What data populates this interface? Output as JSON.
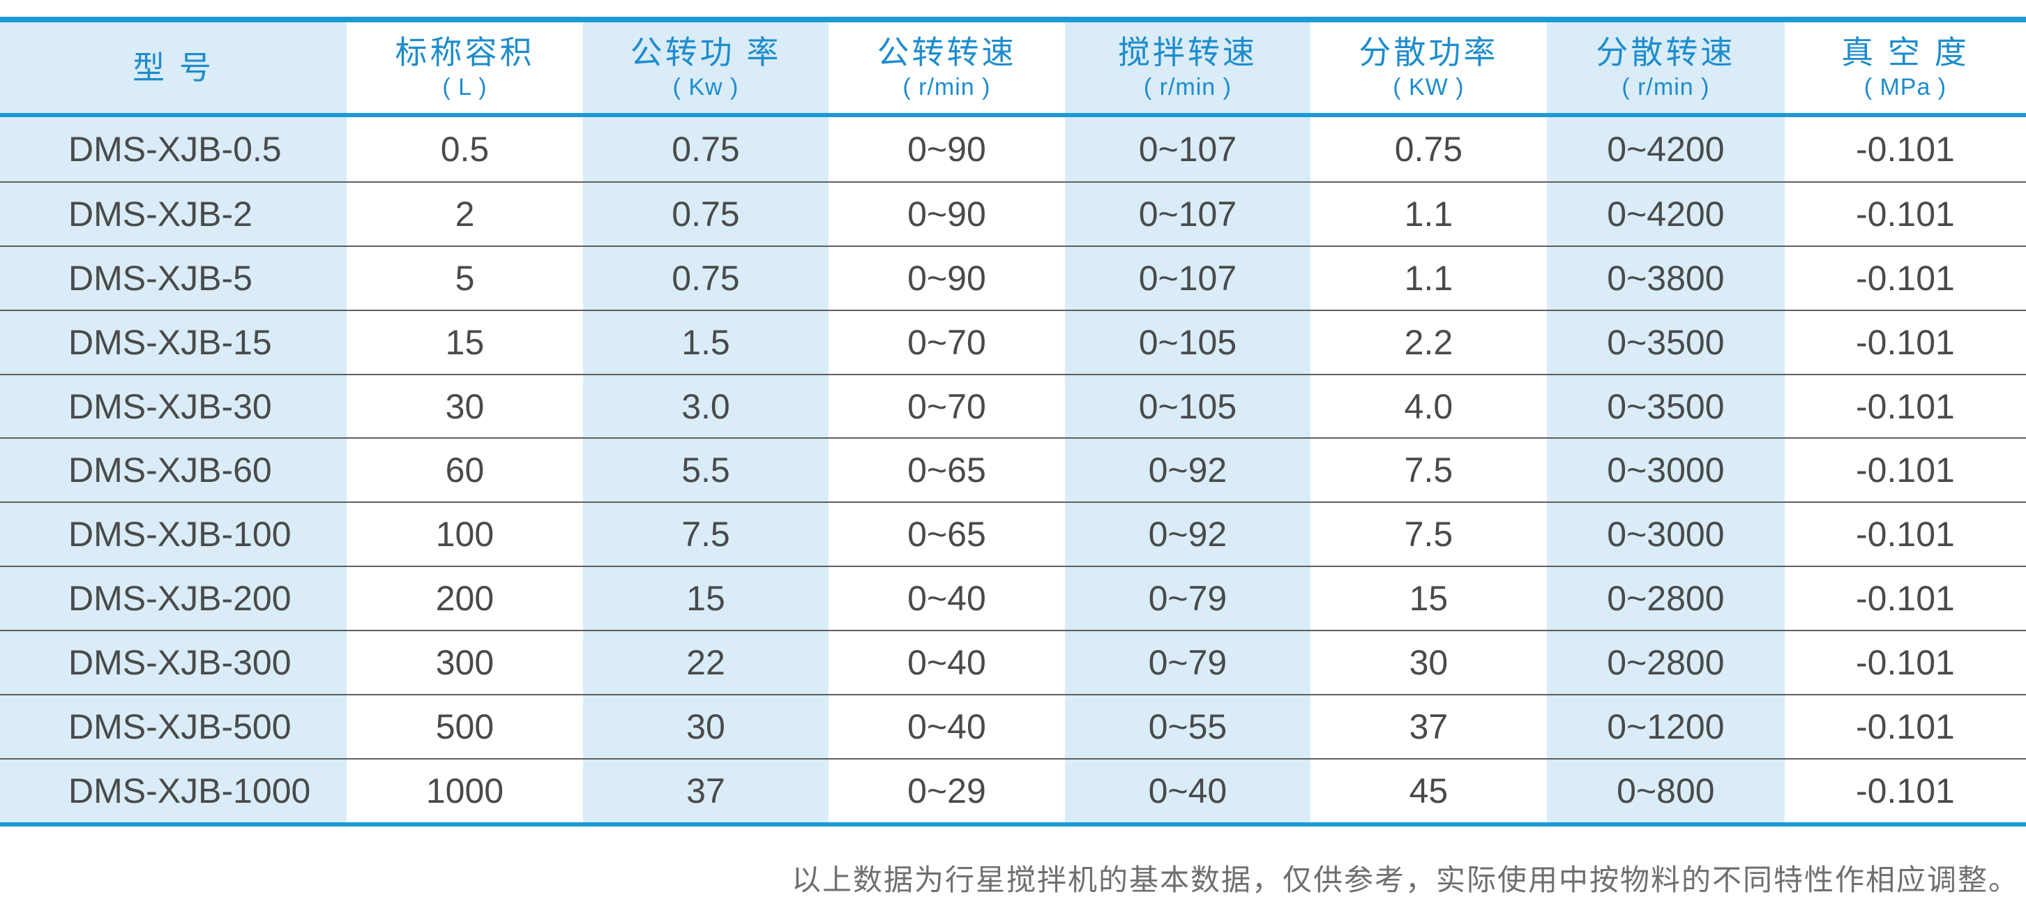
{
  "table": {
    "columns": [
      {
        "title": "型  号",
        "unit": ""
      },
      {
        "title": "标称容积",
        "unit": "( L )"
      },
      {
        "title": "公转功 率",
        "unit": "( Kw )"
      },
      {
        "title": "公转转速",
        "unit": "( r/min )"
      },
      {
        "title": "搅拌转速",
        "unit": "( r/min )"
      },
      {
        "title": "分散功率",
        "unit": "( KW )"
      },
      {
        "title": "分散转速",
        "unit": "( r/min )"
      },
      {
        "title": "真 空 度",
        "unit": "( MPa )"
      }
    ],
    "rows": [
      {
        "cells": [
          "DMS-XJB-0.5",
          "0.5",
          "0.75",
          "0~90",
          "0~107",
          "0.75",
          "0~4200",
          "-0.101"
        ]
      },
      {
        "cells": [
          "DMS-XJB-2",
          "2",
          "0.75",
          "0~90",
          "0~107",
          "1.1",
          "0~4200",
          "-0.101"
        ]
      },
      {
        "cells": [
          "DMS-XJB-5",
          "5",
          "0.75",
          "0~90",
          "0~107",
          "1.1",
          "0~3800",
          "-0.101"
        ]
      },
      {
        "cells": [
          "DMS-XJB-15",
          "15",
          "1.5",
          "0~70",
          "0~105",
          "2.2",
          "0~3500",
          "-0.101"
        ]
      },
      {
        "cells": [
          "DMS-XJB-30",
          "30",
          "3.0",
          "0~70",
          "0~105",
          "4.0",
          "0~3500",
          "-0.101"
        ]
      },
      {
        "cells": [
          "DMS-XJB-60",
          "60",
          "5.5",
          "0~65",
          "0~92",
          "7.5",
          "0~3000",
          "-0.101"
        ]
      },
      {
        "cells": [
          "DMS-XJB-100",
          "100",
          "7.5",
          "0~65",
          "0~92",
          "7.5",
          "0~3000",
          "-0.101"
        ]
      },
      {
        "cells": [
          "DMS-XJB-200",
          "200",
          "15",
          "0~40",
          "0~79",
          "15",
          "0~2800",
          "-0.101"
        ]
      },
      {
        "cells": [
          "DMS-XJB-300",
          "300",
          "22",
          "0~40",
          "0~79",
          "30",
          "0~2800",
          "-0.101"
        ]
      },
      {
        "cells": [
          "DMS-XJB-500",
          "500",
          "30",
          "0~40",
          "0~55",
          "37",
          "0~1200",
          "-0.101"
        ]
      },
      {
        "cells": [
          "DMS-XJB-1000",
          "1000",
          "37",
          "0~29",
          "0~40",
          "45",
          "0~800",
          "-0.101"
        ]
      }
    ]
  },
  "footer": {
    "note": "以上数据为行星搅拌机的基本数据，仅供参考，实际使用中按物料的不同特性作相应调整。"
  },
  "colors": {
    "accent": "#1b9ad6",
    "header_text": "#1e8ccd",
    "alt_column_bg": "#d9ecf8",
    "data_text": "#4a4a4a",
    "row_separator": "#5f5f5f",
    "note_text": "#6f6f6f"
  }
}
